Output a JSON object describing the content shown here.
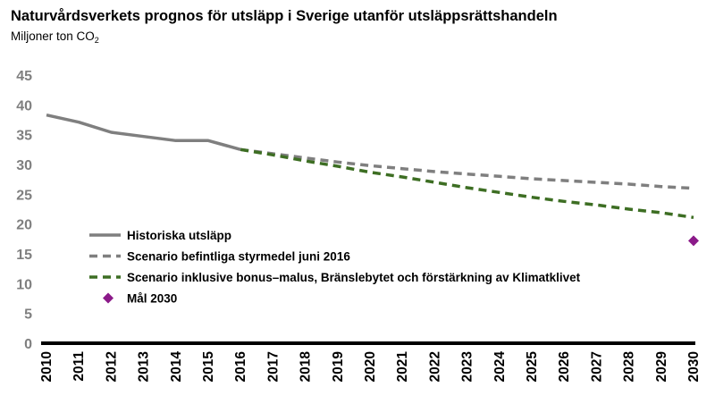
{
  "chart_data": {
    "type": "line",
    "title": "Naturvårdsverkets prognos för utsläpp i Sverige utanför utsläppsrättshandeln",
    "ylabel_prefix": "Miljoner ton CO",
    "ylabel_subscript": "2",
    "xlabel": "",
    "ylim": [
      0,
      45
    ],
    "yticks": [
      0,
      5,
      10,
      15,
      20,
      25,
      30,
      35,
      40,
      45
    ],
    "xlim": [
      2010,
      2030
    ],
    "xticks": [
      "2010",
      "2011",
      "2012",
      "2013",
      "2014",
      "2015",
      "2016",
      "2017",
      "2018",
      "2019",
      "2020",
      "2021",
      "2022",
      "2023",
      "2024",
      "2025",
      "2026",
      "2027",
      "2028",
      "2029",
      "2030"
    ],
    "grid": false,
    "legend_position": "lower-left",
    "series": [
      {
        "name": "Historiska utsläpp",
        "style": "solid",
        "color": "#7f7f7f",
        "points": [
          [
            2010,
            38.3
          ],
          [
            2011,
            37.1
          ],
          [
            2012,
            35.4
          ],
          [
            2013,
            34.7
          ],
          [
            2014,
            34.0
          ],
          [
            2015,
            34.0
          ],
          [
            2016,
            32.5
          ]
        ]
      },
      {
        "name": "Scenario befintliga styrmedel juni 2016",
        "style": "dashed",
        "color": "#7f7f7f",
        "points": [
          [
            2016,
            32.5
          ],
          [
            2017,
            31.8
          ],
          [
            2018,
            31.1
          ],
          [
            2019,
            30.4
          ],
          [
            2020,
            29.8
          ],
          [
            2021,
            29.3
          ],
          [
            2022,
            28.8
          ],
          [
            2023,
            28.4
          ],
          [
            2024,
            28.0
          ],
          [
            2025,
            27.6
          ],
          [
            2026,
            27.3
          ],
          [
            2027,
            27.0
          ],
          [
            2028,
            26.7
          ],
          [
            2029,
            26.3
          ],
          [
            2030,
            26.0
          ]
        ]
      },
      {
        "name": "Scenario inklusive bonus–malus, Bränslebytet och förstärkning av Klimatklivet",
        "style": "dashed",
        "color": "#3d6e23",
        "points": [
          [
            2016,
            32.5
          ],
          [
            2017,
            31.6
          ],
          [
            2018,
            30.6
          ],
          [
            2019,
            29.7
          ],
          [
            2020,
            28.7
          ],
          [
            2021,
            27.9
          ],
          [
            2022,
            27.0
          ],
          [
            2023,
            26.1
          ],
          [
            2024,
            25.3
          ],
          [
            2025,
            24.5
          ],
          [
            2026,
            23.8
          ],
          [
            2027,
            23.2
          ],
          [
            2028,
            22.5
          ],
          [
            2029,
            21.9
          ],
          [
            2030,
            21.1
          ]
        ]
      },
      {
        "name": "Mål 2030",
        "style": "marker",
        "marker": "diamond",
        "color": "#8b1a89",
        "points": [
          [
            2030,
            17.2
          ]
        ]
      }
    ]
  }
}
